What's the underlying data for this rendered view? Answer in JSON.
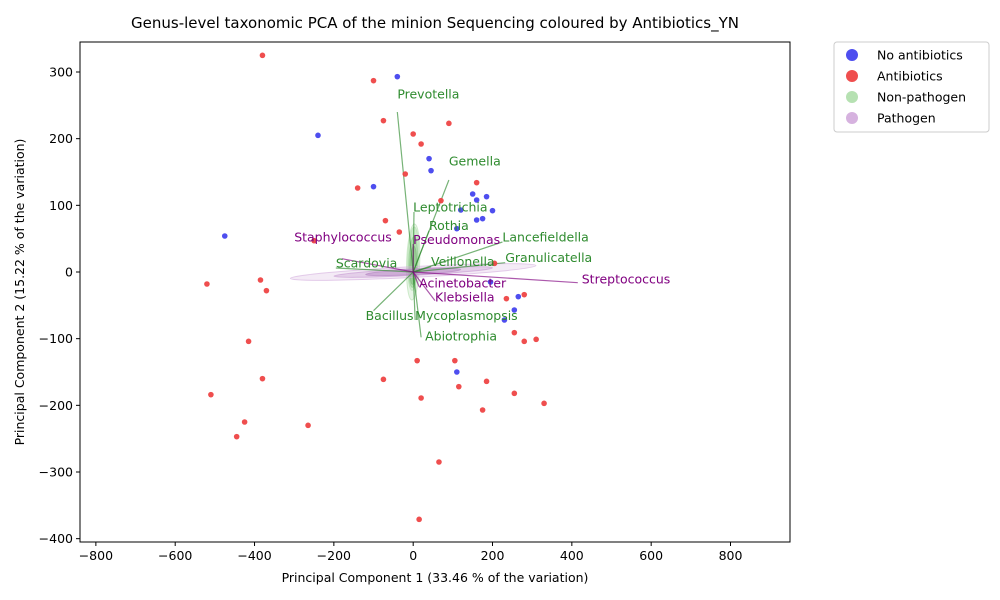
{
  "chart_data": {
    "type": "scatter",
    "title": "Genus-level taxonomic PCA of the minion Sequencing coloured by Antibiotics_YN",
    "xlabel": "Principal Component 1 (33.46 % of the variation)",
    "ylabel": "Principal Component 2 (15.22 % of the variation)",
    "xlim": [
      -840,
      950
    ],
    "ylim": [
      -405,
      345
    ],
    "xticks": [
      -800,
      -600,
      -400,
      -200,
      0,
      200,
      400,
      600,
      800
    ],
    "yticks": [
      -400,
      -300,
      -200,
      -100,
      0,
      100,
      200,
      300
    ],
    "grid": false,
    "legend_position": "outside-top-right",
    "legend": [
      {
        "label": "No antibiotics",
        "color": "#4444ee"
      },
      {
        "label": "Antibiotics",
        "color": "#ee4444"
      },
      {
        "label": "Non-pathogen",
        "color": "#b2dfae"
      },
      {
        "label": "Pathogen",
        "color": "#d4aedd"
      }
    ],
    "series": [
      {
        "name": "No antibiotics",
        "color": "#4444ee",
        "points": [
          [
            -40,
            293
          ],
          [
            -240,
            205
          ],
          [
            40,
            170
          ],
          [
            -100,
            128
          ],
          [
            45,
            152
          ],
          [
            150,
            117
          ],
          [
            185,
            113
          ],
          [
            160,
            108
          ],
          [
            200,
            92
          ],
          [
            120,
            93
          ],
          [
            175,
            80
          ],
          [
            160,
            78
          ],
          [
            110,
            65
          ],
          [
            -475,
            54
          ],
          [
            195,
            -15
          ],
          [
            265,
            -37
          ],
          [
            255,
            -57
          ],
          [
            110,
            -150
          ],
          [
            230,
            -72
          ]
        ]
      },
      {
        "name": "Antibiotics",
        "color": "#ee4444",
        "points": [
          [
            -380,
            325
          ],
          [
            -100,
            287
          ],
          [
            -75,
            227
          ],
          [
            90,
            223
          ],
          [
            0,
            207
          ],
          [
            20,
            192
          ],
          [
            -20,
            147
          ],
          [
            160,
            134
          ],
          [
            -140,
            126
          ],
          [
            70,
            107
          ],
          [
            -70,
            77
          ],
          [
            -35,
            60
          ],
          [
            -250,
            47
          ],
          [
            205,
            13
          ],
          [
            -385,
            -12
          ],
          [
            -520,
            -18
          ],
          [
            -370,
            -28
          ],
          [
            280,
            -34
          ],
          [
            235,
            -40
          ],
          [
            255,
            -91
          ],
          [
            310,
            -101
          ],
          [
            280,
            -104
          ],
          [
            -415,
            -104
          ],
          [
            10,
            -133
          ],
          [
            105,
            -133
          ],
          [
            -380,
            -160
          ],
          [
            -75,
            -161
          ],
          [
            185,
            -164
          ],
          [
            115,
            -172
          ],
          [
            -510,
            -184
          ],
          [
            255,
            -182
          ],
          [
            20,
            -189
          ],
          [
            330,
            -197
          ],
          [
            175,
            -207
          ],
          [
            -425,
            -225
          ],
          [
            -265,
            -230
          ],
          [
            -445,
            -247
          ],
          [
            65,
            -285
          ],
          [
            15,
            -371
          ]
        ]
      }
    ],
    "genus_loadings": [
      {
        "name": "Prevotella",
        "class": "Non-pathogen",
        "color": "#2e8b2e",
        "x": -40,
        "y": 240,
        "label_x": -40,
        "label_y": 260
      },
      {
        "name": "Gemella",
        "class": "Non-pathogen",
        "color": "#2e8b2e",
        "x": 90,
        "y": 138,
        "label_x": 90,
        "label_y": 160
      },
      {
        "name": "Leptotrichia",
        "class": "Non-pathogen",
        "color": "#2e8b2e",
        "x": 2,
        "y": 90,
        "label_x": 0,
        "label_y": 91
      },
      {
        "name": "Rothia",
        "class": "Non-pathogen",
        "color": "#2e8b2e",
        "x": 40,
        "y": 62,
        "label_x": 40,
        "label_y": 63
      },
      {
        "name": "Lancefieldella",
        "class": "Non-pathogen",
        "color": "#2e8b2e",
        "x": 225,
        "y": 45,
        "label_x": 225,
        "label_y": 46
      },
      {
        "name": "Granulicatella",
        "class": "Non-pathogen",
        "color": "#2e8b2e",
        "x": 232,
        "y": 14,
        "label_x": 232,
        "label_y": 15
      },
      {
        "name": "Scardovia",
        "class": "Non-pathogen",
        "color": "#2e8b2e",
        "x": -195,
        "y": 6,
        "label_x": -195,
        "label_y": 7
      },
      {
        "name": "Veillonella",
        "class": "Non-pathogen",
        "color": "#2e8b2e",
        "x": 45,
        "y": 8,
        "label_x": 45,
        "label_y": 9
      },
      {
        "name": "Bacillus",
        "class": "Non-pathogen",
        "color": "#2e8b2e",
        "x": -100,
        "y": -58,
        "label_x": -120,
        "label_y": -72
      },
      {
        "name": "Mycoplasmopsis",
        "class": "Non-pathogen",
        "color": "#2e8b2e",
        "x": 5,
        "y": -72,
        "label_x": 5,
        "label_y": -72
      },
      {
        "name": "Abiotrophia",
        "class": "Non-pathogen",
        "color": "#2e8b2e",
        "x": 20,
        "y": -98,
        "label_x": 30,
        "label_y": -103
      },
      {
        "name": "Staphylococcus",
        "class": "Pathogen",
        "color": "#800080",
        "x": -180,
        "y": 20,
        "label_x": -300,
        "label_y": 46
      },
      {
        "name": "Pseudomonas",
        "class": "Pathogen",
        "color": "#800080",
        "x": 0,
        "y": 42,
        "label_x": 0,
        "label_y": 42
      },
      {
        "name": "Streptococcus",
        "class": "Pathogen",
        "color": "#800080",
        "x": 415,
        "y": -16,
        "label_x": 425,
        "label_y": -17
      },
      {
        "name": "Acinetobacter",
        "class": "Pathogen",
        "color": "#800080",
        "x": 15,
        "y": -22,
        "label_x": 15,
        "label_y": -23
      },
      {
        "name": "Klebsiella",
        "class": "Pathogen",
        "color": "#800080",
        "x": 55,
        "y": -43,
        "label_x": 55,
        "label_y": -44
      }
    ]
  }
}
